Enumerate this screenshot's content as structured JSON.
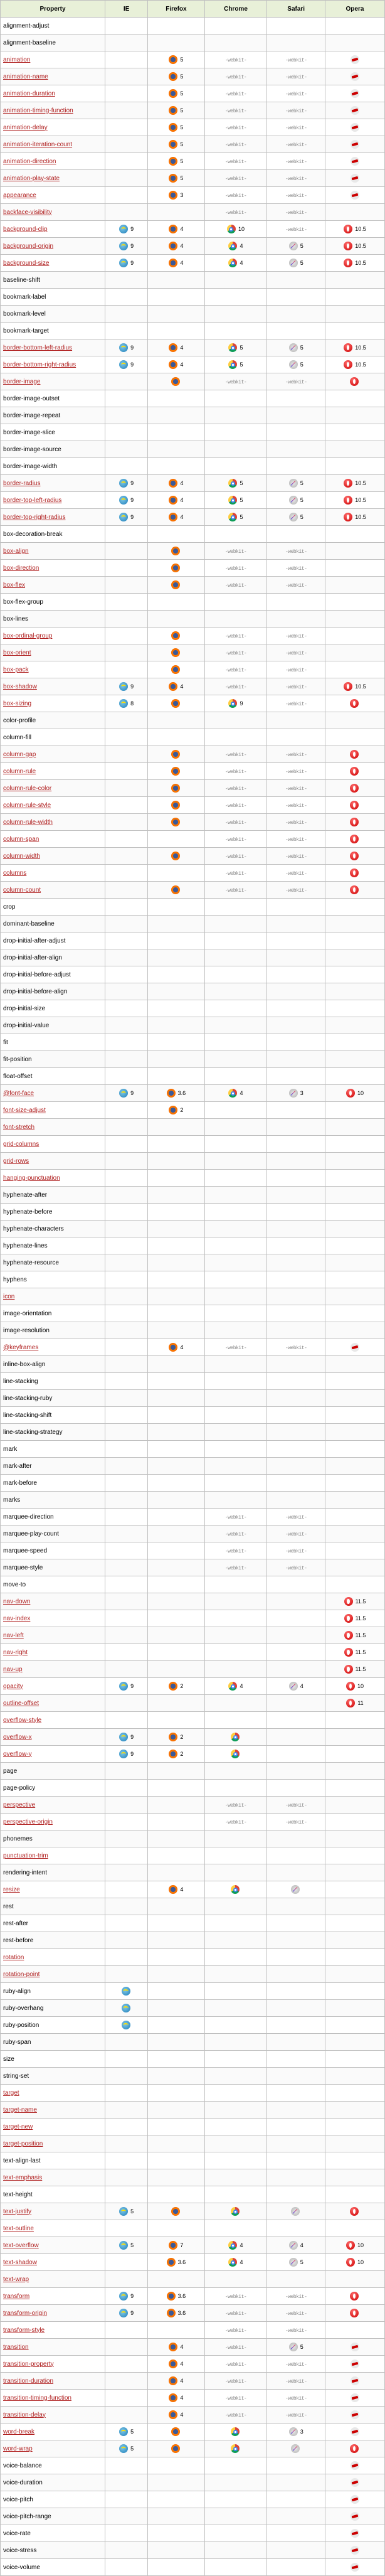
{
  "headers": [
    "Property",
    "IE",
    "Firefox",
    "Chrome",
    "Safari",
    "Opera"
  ],
  "ie": "ie",
  "ff": "ff",
  "ch": "ch",
  "sf": "sf",
  "op": "op",
  "wk": "webkit",
  "no": "no",
  "rows": [
    {
      "p": "alignment-adjust",
      "l": 0
    },
    {
      "p": "alignment-baseline",
      "l": 0
    },
    {
      "p": "animation",
      "l": 1,
      "ff": [
        "ff",
        "5"
      ],
      "ch": [
        "wk"
      ],
      "sf": [
        "wk"
      ],
      "op": [
        "no"
      ]
    },
    {
      "p": "animation-name",
      "l": 1,
      "ff": [
        "ff",
        "5"
      ],
      "ch": [
        "wk"
      ],
      "sf": [
        "wk"
      ],
      "op": [
        "no"
      ]
    },
    {
      "p": "animation-duration",
      "l": 1,
      "ff": [
        "ff",
        "5"
      ],
      "ch": [
        "wk"
      ],
      "sf": [
        "wk"
      ],
      "op": [
        "no"
      ]
    },
    {
      "p": "animation-timing-function",
      "l": 1,
      "ff": [
        "ff",
        "5"
      ],
      "ch": [
        "wk"
      ],
      "sf": [
        "wk"
      ],
      "op": [
        "no"
      ]
    },
    {
      "p": "animation-delay",
      "l": 1,
      "ff": [
        "ff",
        "5"
      ],
      "ch": [
        "wk"
      ],
      "sf": [
        "wk"
      ],
      "op": [
        "no"
      ]
    },
    {
      "p": "animation-iteration-count",
      "l": 1,
      "ff": [
        "ff",
        "5"
      ],
      "ch": [
        "wk"
      ],
      "sf": [
        "wk"
      ],
      "op": [
        "no"
      ]
    },
    {
      "p": "animation-direction",
      "l": 1,
      "ff": [
        "ff",
        "5"
      ],
      "ch": [
        "wk"
      ],
      "sf": [
        "wk"
      ],
      "op": [
        "no"
      ]
    },
    {
      "p": "animation-play-state",
      "l": 1,
      "ff": [
        "ff",
        "5"
      ],
      "ch": [
        "wk"
      ],
      "sf": [
        "wk"
      ],
      "op": [
        "no"
      ]
    },
    {
      "p": "appearance",
      "l": 1,
      "ff": [
        "ff",
        "3"
      ],
      "ch": [
        "wk"
      ],
      "sf": [
        "wk"
      ],
      "op": [
        "no"
      ]
    },
    {
      "p": "backface-visibility",
      "l": 1,
      "ch": [
        "wk"
      ],
      "sf": [
        "wk"
      ]
    },
    {
      "p": "background-clip",
      "l": 1,
      "ie": [
        "ie",
        "9"
      ],
      "ff": [
        "ff",
        "4"
      ],
      "ch": [
        "ch",
        "10"
      ],
      "sf": [
        "wk"
      ],
      "op": [
        "op",
        "10.5"
      ]
    },
    {
      "p": "background-origin",
      "l": 1,
      "ie": [
        "ie",
        "9"
      ],
      "ff": [
        "ff",
        "4"
      ],
      "ch": [
        "ch",
        "4"
      ],
      "sf": [
        "sf",
        "5"
      ],
      "op": [
        "op",
        "10.5"
      ]
    },
    {
      "p": "background-size",
      "l": 1,
      "ie": [
        "ie",
        "9"
      ],
      "ff": [
        "ff",
        "4"
      ],
      "ch": [
        "ch",
        "4"
      ],
      "sf": [
        "sf",
        "5"
      ],
      "op": [
        "op",
        "10.5"
      ]
    },
    {
      "p": "baseline-shift",
      "l": 0
    },
    {
      "p": "bookmark-label",
      "l": 0
    },
    {
      "p": "bookmark-level",
      "l": 0
    },
    {
      "p": "bookmark-target",
      "l": 0
    },
    {
      "p": "border-bottom-left-radius",
      "l": 1,
      "ie": [
        "ie",
        "9"
      ],
      "ff": [
        "ff",
        "4"
      ],
      "ch": [
        "ch",
        "5"
      ],
      "sf": [
        "sf",
        "5"
      ],
      "op": [
        "op",
        "10.5"
      ]
    },
    {
      "p": "border-bottom-right-radius",
      "l": 1,
      "ie": [
        "ie",
        "9"
      ],
      "ff": [
        "ff",
        "4"
      ],
      "ch": [
        "ch",
        "5"
      ],
      "sf": [
        "sf",
        "5"
      ],
      "op": [
        "op",
        "10.5"
      ]
    },
    {
      "p": "border-image",
      "l": 1,
      "ff": [
        "ff"
      ],
      "ch": [
        "wk"
      ],
      "sf": [
        "wk"
      ],
      "op": [
        "op"
      ]
    },
    {
      "p": "border-image-outset",
      "l": 0
    },
    {
      "p": "border-image-repeat",
      "l": 0
    },
    {
      "p": "border-image-slice",
      "l": 0
    },
    {
      "p": "border-image-source",
      "l": 0
    },
    {
      "p": "border-image-width",
      "l": 0
    },
    {
      "p": "border-radius",
      "l": 1,
      "ie": [
        "ie",
        "9"
      ],
      "ff": [
        "ff",
        "4"
      ],
      "ch": [
        "ch",
        "5"
      ],
      "sf": [
        "sf",
        "5"
      ],
      "op": [
        "op",
        "10.5"
      ]
    },
    {
      "p": "border-top-left-radius",
      "l": 1,
      "ie": [
        "ie",
        "9"
      ],
      "ff": [
        "ff",
        "4"
      ],
      "ch": [
        "ch",
        "5"
      ],
      "sf": [
        "sf",
        "5"
      ],
      "op": [
        "op",
        "10.5"
      ]
    },
    {
      "p": "border-top-right-radius",
      "l": 1,
      "ie": [
        "ie",
        "9"
      ],
      "ff": [
        "ff",
        "4"
      ],
      "ch": [
        "ch",
        "5"
      ],
      "sf": [
        "sf",
        "5"
      ],
      "op": [
        "op",
        "10.5"
      ]
    },
    {
      "p": "box-decoration-break",
      "l": 0
    },
    {
      "p": "box-align",
      "l": 1,
      "ff": [
        "ff"
      ],
      "ch": [
        "wk"
      ],
      "sf": [
        "wk"
      ]
    },
    {
      "p": "box-direction",
      "l": 1,
      "ff": [
        "ff"
      ],
      "ch": [
        "wk"
      ],
      "sf": [
        "wk"
      ]
    },
    {
      "p": "box-flex",
      "l": 1,
      "ff": [
        "ff"
      ],
      "ch": [
        "wk"
      ],
      "sf": [
        "wk"
      ]
    },
    {
      "p": "box-flex-group",
      "l": 0
    },
    {
      "p": "box-lines",
      "l": 0
    },
    {
      "p": "box-ordinal-group",
      "l": 1,
      "ff": [
        "ff"
      ],
      "ch": [
        "wk"
      ],
      "sf": [
        "wk"
      ]
    },
    {
      "p": "box-orient",
      "l": 1,
      "ff": [
        "ff"
      ],
      "ch": [
        "wk"
      ],
      "sf": [
        "wk"
      ]
    },
    {
      "p": "box-pack",
      "l": 1,
      "ff": [
        "ff"
      ],
      "ch": [
        "wk"
      ],
      "sf": [
        "wk"
      ]
    },
    {
      "p": "box-shadow",
      "l": 1,
      "ie": [
        "ie",
        "9"
      ],
      "ff": [
        "ff",
        "4"
      ],
      "ch": [
        "wk"
      ],
      "sf": [
        "wk"
      ],
      "op": [
        "op",
        "10.5"
      ]
    },
    {
      "p": "box-sizing",
      "l": 1,
      "ie": [
        "ie",
        "8"
      ],
      "ff": [
        "ff"
      ],
      "ch": [
        "ch",
        "9"
      ],
      "sf": [
        "wk"
      ],
      "op": [
        "op"
      ]
    },
    {
      "p": "color-profile",
      "l": 0
    },
    {
      "p": "column-fill",
      "l": 0
    },
    {
      "p": "column-gap",
      "l": 1,
      "ff": [
        "ff"
      ],
      "ch": [
        "wk"
      ],
      "sf": [
        "wk"
      ],
      "op": [
        "op"
      ]
    },
    {
      "p": "column-rule",
      "l": 1,
      "ff": [
        "ff"
      ],
      "ch": [
        "wk"
      ],
      "sf": [
        "wk"
      ],
      "op": [
        "op"
      ]
    },
    {
      "p": "column-rule-color",
      "l": 1,
      "ff": [
        "ff"
      ],
      "ch": [
        "wk"
      ],
      "sf": [
        "wk"
      ],
      "op": [
        "op"
      ]
    },
    {
      "p": "column-rule-style",
      "l": 1,
      "ff": [
        "ff"
      ],
      "ch": [
        "wk"
      ],
      "sf": [
        "wk"
      ],
      "op": [
        "op"
      ]
    },
    {
      "p": "column-rule-width",
      "l": 1,
      "ff": [
        "ff"
      ],
      "ch": [
        "wk"
      ],
      "sf": [
        "wk"
      ],
      "op": [
        "op"
      ]
    },
    {
      "p": "column-span",
      "l": 1,
      "ch": [
        "wk"
      ],
      "sf": [
        "wk"
      ],
      "op": [
        "op"
      ]
    },
    {
      "p": "column-width",
      "l": 1,
      "ff": [
        "ff"
      ],
      "ch": [
        "wk"
      ],
      "sf": [
        "wk"
      ],
      "op": [
        "op"
      ]
    },
    {
      "p": "columns",
      "l": 1,
      "ch": [
        "wk"
      ],
      "sf": [
        "wk"
      ],
      "op": [
        "op"
      ]
    },
    {
      "p": "column-count",
      "l": 1,
      "ff": [
        "ff"
      ],
      "ch": [
        "wk"
      ],
      "sf": [
        "wk"
      ],
      "op": [
        "op"
      ]
    },
    {
      "p": "crop",
      "l": 0
    },
    {
      "p": "dominant-baseline",
      "l": 0
    },
    {
      "p": "drop-initial-after-adjust",
      "l": 0
    },
    {
      "p": "drop-initial-after-align",
      "l": 0
    },
    {
      "p": "drop-initial-before-adjust",
      "l": 0
    },
    {
      "p": "drop-initial-before-align",
      "l": 0
    },
    {
      "p": "drop-initial-size",
      "l": 0
    },
    {
      "p": "drop-initial-value",
      "l": 0
    },
    {
      "p": "fit",
      "l": 0
    },
    {
      "p": "fit-position",
      "l": 0
    },
    {
      "p": "float-offset",
      "l": 0
    },
    {
      "p": "@font-face",
      "l": 1,
      "ie": [
        "ie",
        "9"
      ],
      "ff": [
        "ff",
        "3.6"
      ],
      "ch": [
        "ch",
        "4"
      ],
      "sf": [
        "sf",
        "3"
      ],
      "op": [
        "op",
        "10"
      ]
    },
    {
      "p": "font-size-adjust",
      "l": 1,
      "ff": [
        "ff",
        "2"
      ]
    },
    {
      "p": "font-stretch",
      "l": 1
    },
    {
      "p": "grid-columns",
      "l": 1
    },
    {
      "p": "grid-rows",
      "l": 1
    },
    {
      "p": "hanging-punctuation",
      "l": 1
    },
    {
      "p": "hyphenate-after",
      "l": 0
    },
    {
      "p": "hyphenate-before",
      "l": 0
    },
    {
      "p": "hyphenate-characters",
      "l": 0
    },
    {
      "p": "hyphenate-lines",
      "l": 0
    },
    {
      "p": "hyphenate-resource",
      "l": 0
    },
    {
      "p": "hyphens",
      "l": 0
    },
    {
      "p": "icon",
      "l": 1
    },
    {
      "p": "image-orientation",
      "l": 0
    },
    {
      "p": "image-resolution",
      "l": 0
    },
    {
      "p": "@keyframes",
      "l": 1,
      "ff": [
        "ff",
        "4"
      ],
      "ch": [
        "wk"
      ],
      "sf": [
        "wk"
      ],
      "op": [
        "no"
      ]
    },
    {
      "p": "inline-box-align",
      "l": 0
    },
    {
      "p": "line-stacking",
      "l": 0
    },
    {
      "p": "line-stacking-ruby",
      "l": 0
    },
    {
      "p": "line-stacking-shift",
      "l": 0
    },
    {
      "p": "line-stacking-strategy",
      "l": 0
    },
    {
      "p": "mark",
      "l": 0
    },
    {
      "p": "mark-after",
      "l": 0
    },
    {
      "p": "mark-before",
      "l": 0
    },
    {
      "p": "marks",
      "l": 0
    },
    {
      "p": "marquee-direction",
      "l": 0,
      "ch": [
        "wk"
      ],
      "sf": [
        "wk"
      ]
    },
    {
      "p": "marquee-play-count",
      "l": 0,
      "ch": [
        "wk"
      ],
      "sf": [
        "wk"
      ]
    },
    {
      "p": "marquee-speed",
      "l": 0,
      "ch": [
        "wk"
      ],
      "sf": [
        "wk"
      ]
    },
    {
      "p": "marquee-style",
      "l": 0,
      "ch": [
        "wk"
      ],
      "sf": [
        "wk"
      ]
    },
    {
      "p": "move-to",
      "l": 0
    },
    {
      "p": "nav-down",
      "l": 1,
      "op": [
        "op",
        "11.5"
      ]
    },
    {
      "p": "nav-index",
      "l": 1,
      "op": [
        "op",
        "11.5"
      ]
    },
    {
      "p": "nav-left",
      "l": 1,
      "op": [
        "op",
        "11.5"
      ]
    },
    {
      "p": "nav-right",
      "l": 1,
      "op": [
        "op",
        "11.5"
      ]
    },
    {
      "p": "nav-up",
      "l": 1,
      "op": [
        "op",
        "11.5"
      ]
    },
    {
      "p": "opacity",
      "l": 1,
      "ie": [
        "ie",
        "9"
      ],
      "ff": [
        "ff",
        "2"
      ],
      "ch": [
        "ch",
        "4"
      ],
      "sf": [
        "sf",
        "4"
      ],
      "op": [
        "op",
        "10"
      ]
    },
    {
      "p": "outline-offset",
      "l": 1,
      "op": [
        "op",
        "11"
      ]
    },
    {
      "p": "overflow-style",
      "l": 1
    },
    {
      "p": "overflow-x",
      "l": 1,
      "ie": [
        "ie",
        "9"
      ],
      "ff": [
        "ff",
        "2"
      ],
      "ch": [
        "ch"
      ]
    },
    {
      "p": "overflow-y",
      "l": 1,
      "ie": [
        "ie",
        "9"
      ],
      "ff": [
        "ff",
        "2"
      ],
      "ch": [
        "ch"
      ]
    },
    {
      "p": "page",
      "l": 0
    },
    {
      "p": "page-policy",
      "l": 0
    },
    {
      "p": "perspective",
      "l": 1,
      "ch": [
        "wk"
      ],
      "sf": [
        "wk"
      ]
    },
    {
      "p": "perspective-origin",
      "l": 1,
      "ch": [
        "wk"
      ],
      "sf": [
        "wk"
      ]
    },
    {
      "p": "phonemes",
      "l": 0
    },
    {
      "p": "punctuation-trim",
      "l": 1
    },
    {
      "p": "rendering-intent",
      "l": 0
    },
    {
      "p": "resize",
      "l": 1,
      "ff": [
        "ff",
        "4"
      ],
      "ch": [
        "ch"
      ],
      "sf": [
        "sf"
      ]
    },
    {
      "p": "rest",
      "l": 0
    },
    {
      "p": "rest-after",
      "l": 0
    },
    {
      "p": "rest-before",
      "l": 0
    },
    {
      "p": "rotation",
      "l": 1
    },
    {
      "p": "rotation-point",
      "l": 1
    },
    {
      "p": "ruby-align",
      "l": 0,
      "ie": [
        "ie"
      ]
    },
    {
      "p": "ruby-overhang",
      "l": 0,
      "ie": [
        "ie"
      ]
    },
    {
      "p": "ruby-position",
      "l": 0,
      "ie": [
        "ie"
      ]
    },
    {
      "p": "ruby-span",
      "l": 0
    },
    {
      "p": "size",
      "l": 0
    },
    {
      "p": "string-set",
      "l": 0
    },
    {
      "p": "target",
      "l": 1
    },
    {
      "p": "target-name",
      "l": 1
    },
    {
      "p": "target-new",
      "l": 1
    },
    {
      "p": "target-position",
      "l": 1
    },
    {
      "p": "text-align-last",
      "l": 0
    },
    {
      "p": "text-emphasis",
      "l": 1
    },
    {
      "p": "text-height",
      "l": 0
    },
    {
      "p": "text-justify",
      "l": 1,
      "ie": [
        "ie",
        "5"
      ],
      "ff": [
        "ff"
      ],
      "ch": [
        "ch"
      ],
      "sf": [
        "sf"
      ],
      "op": [
        "op"
      ]
    },
    {
      "p": "text-outline",
      "l": 1
    },
    {
      "p": "text-overflow",
      "l": 1,
      "ie": [
        "ie",
        "5"
      ],
      "ff": [
        "ff",
        "7"
      ],
      "ch": [
        "ch",
        "4"
      ],
      "sf": [
        "sf",
        "4"
      ],
      "op": [
        "op",
        "10"
      ]
    },
    {
      "p": "text-shadow",
      "l": 1,
      "ff": [
        "ff",
        "3.6"
      ],
      "ch": [
        "ch",
        "4"
      ],
      "sf": [
        "sf",
        "5"
      ],
      "op": [
        "op",
        "10"
      ]
    },
    {
      "p": "text-wrap",
      "l": 1
    },
    {
      "p": "transform",
      "l": 1,
      "ie": [
        "ie",
        "9"
      ],
      "ff": [
        "ff",
        "3.6"
      ],
      "ch": [
        "wk"
      ],
      "sf": [
        "wk"
      ],
      "op": [
        "op"
      ]
    },
    {
      "p": "transform-origin",
      "l": 1,
      "ie": [
        "ie",
        "9"
      ],
      "ff": [
        "ff",
        "3.6"
      ],
      "ch": [
        "wk"
      ],
      "sf": [
        "wk"
      ],
      "op": [
        "op"
      ]
    },
    {
      "p": "transform-style",
      "l": 1,
      "ch": [
        "wk"
      ],
      "sf": [
        "wk"
      ]
    },
    {
      "p": "transition",
      "l": 1,
      "ff": [
        "ff",
        "4"
      ],
      "ch": [
        "wk"
      ],
      "sf": [
        "sf",
        "5"
      ],
      "op": [
        "no"
      ]
    },
    {
      "p": "transition-property",
      "l": 1,
      "ff": [
        "ff",
        "4"
      ],
      "ch": [
        "wk"
      ],
      "sf": [
        "wk"
      ],
      "op": [
        "no"
      ]
    },
    {
      "p": "transition-duration",
      "l": 1,
      "ff": [
        "ff",
        "4"
      ],
      "ch": [
        "wk"
      ],
      "sf": [
        "wk"
      ],
      "op": [
        "no"
      ]
    },
    {
      "p": "transition-timing-function",
      "l": 1,
      "ff": [
        "ff",
        "4"
      ],
      "ch": [
        "wk"
      ],
      "sf": [
        "wk"
      ],
      "op": [
        "no"
      ]
    },
    {
      "p": "transition-delay",
      "l": 1,
      "ff": [
        "ff",
        "4"
      ],
      "ch": [
        "wk"
      ],
      "sf": [
        "wk"
      ],
      "op": [
        "no"
      ]
    },
    {
      "p": "word-break",
      "l": 1,
      "ie": [
        "ie",
        "5"
      ],
      "ff": [
        "ff"
      ],
      "ch": [
        "ch"
      ],
      "sf": [
        "sf",
        "3"
      ],
      "op": [
        "no"
      ]
    },
    {
      "p": "word-wrap",
      "l": 1,
      "ie": [
        "ie",
        "5"
      ],
      "ff": [
        "ff"
      ],
      "ch": [
        "ch"
      ],
      "sf": [
        "sf"
      ],
      "op": [
        "op"
      ]
    },
    {
      "p": "voice-balance",
      "l": 0,
      "op": [
        "no"
      ]
    },
    {
      "p": "voice-duration",
      "l": 0,
      "op": [
        "no"
      ]
    },
    {
      "p": "voice-pitch",
      "l": 0,
      "op": [
        "no"
      ]
    },
    {
      "p": "voice-pitch-range",
      "l": 0,
      "op": [
        "no"
      ]
    },
    {
      "p": "voice-rate",
      "l": 0,
      "op": [
        "no"
      ]
    },
    {
      "p": "voice-stress",
      "l": 0,
      "op": [
        "no"
      ]
    },
    {
      "p": "voice-volume",
      "l": 0,
      "op": [
        "no"
      ]
    }
  ]
}
